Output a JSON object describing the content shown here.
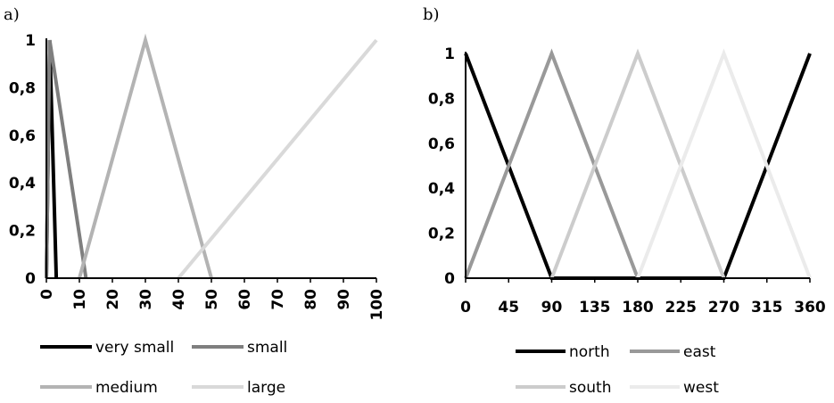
{
  "chart_data": [
    {
      "type": "line",
      "panel_label": "a)",
      "title": "",
      "xlabel": "",
      "ylabel": "",
      "xlim": [
        0,
        100
      ],
      "ylim": [
        0,
        1
      ],
      "x_ticks": [
        "0",
        "10",
        "20",
        "30",
        "40",
        "50",
        "60",
        "70",
        "80",
        "90",
        "100"
      ],
      "y_ticks": [
        "0",
        "0,2",
        "0,4",
        "0,6",
        "0,8",
        "1"
      ],
      "grid": false,
      "legend_position": "bottom",
      "series": [
        {
          "name": "very small",
          "color": "#000000",
          "x": [
            0,
            1,
            3
          ],
          "y": [
            0,
            1,
            0
          ]
        },
        {
          "name": "small",
          "color": "#7f7f7f",
          "x": [
            0,
            1,
            12
          ],
          "y": [
            0,
            1,
            0
          ]
        },
        {
          "name": "medium",
          "color": "#b3b3b3",
          "x": [
            10,
            30,
            50
          ],
          "y": [
            0,
            1,
            0
          ]
        },
        {
          "name": "large",
          "color": "#d9d9d9",
          "x": [
            40,
            100
          ],
          "y": [
            0,
            1
          ]
        }
      ]
    },
    {
      "type": "line",
      "panel_label": "b)",
      "title": "",
      "xlabel": "",
      "ylabel": "",
      "xlim": [
        0,
        360
      ],
      "ylim": [
        0,
        1
      ],
      "x_ticks": [
        "0",
        "45",
        "90",
        "135",
        "180",
        "225",
        "270",
        "315",
        "360"
      ],
      "y_ticks": [
        "0",
        "0,2",
        "0,4",
        "0,6",
        "0,8",
        "1"
      ],
      "grid": false,
      "legend_position": "bottom",
      "series": [
        {
          "name": "north",
          "color": "#000000",
          "x": [
            0,
            90,
            270,
            360
          ],
          "y": [
            1,
            0,
            0,
            1
          ]
        },
        {
          "name": "east",
          "color": "#999999",
          "x": [
            0,
            90,
            180
          ],
          "y": [
            0,
            1,
            0
          ]
        },
        {
          "name": "south",
          "color": "#cccccc",
          "x": [
            90,
            180,
            270
          ],
          "y": [
            0,
            1,
            0
          ]
        },
        {
          "name": "west",
          "color": "#ebebeb",
          "x": [
            180,
            270,
            360
          ],
          "y": [
            0,
            1,
            0
          ]
        }
      ]
    }
  ]
}
